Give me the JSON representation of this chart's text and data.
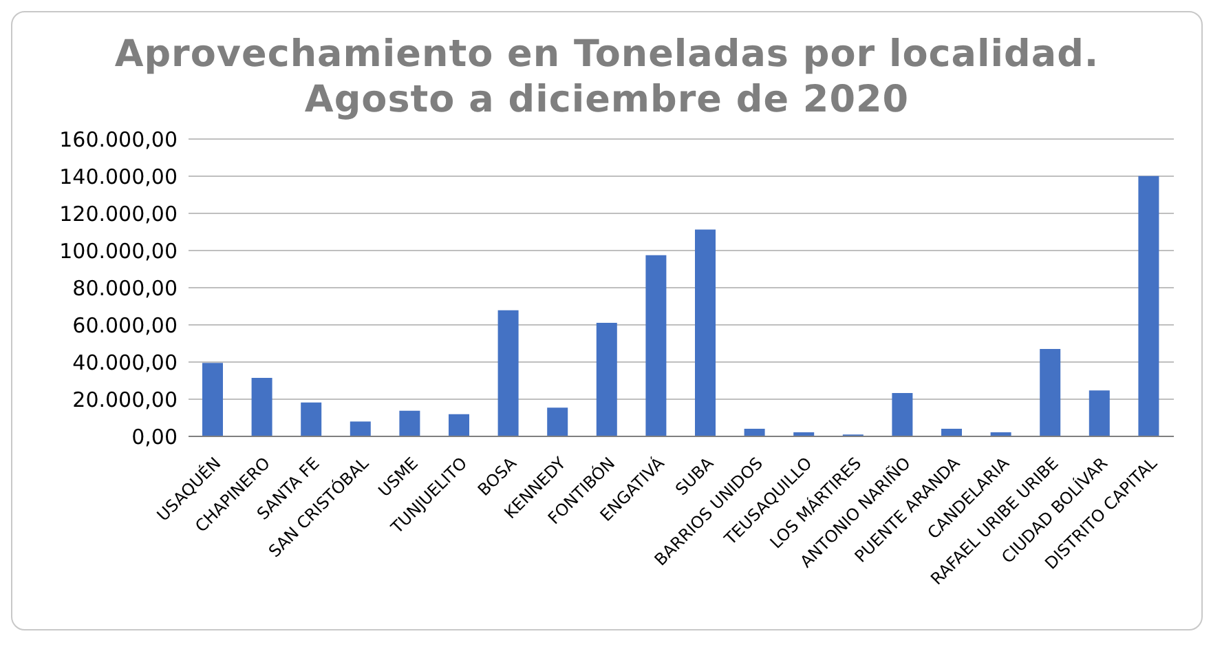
{
  "chart_data": {
    "type": "bar",
    "title": "Aprovechamiento en Toneladas por localidad.\nAgosto a diciembre de 2020",
    "categories": [
      "USAQUÉN",
      "CHAPINERO",
      "SANTA FE",
      "SAN CRISTÓBAL",
      "USME",
      "TUNJUELITO",
      "BOSA",
      "KENNEDY",
      "FONTIBÓN",
      "ENGATIVÁ",
      "SUBA",
      "BARRIOS UNIDOS",
      "TEUSAQUILLO",
      "LOS MÁRTIRES",
      "ANTONIO NARIÑO",
      "PUENTE ARANDA",
      "CANDELARIA",
      "RAFAEL URIBE URIBE",
      "CIUDAD BOLÍVAR",
      "DISTRITO CAPITAL"
    ],
    "values": [
      39500,
      31500,
      18200,
      8000,
      13800,
      11900,
      67900,
      15500,
      61100,
      97500,
      111300,
      4100,
      2200,
      1000,
      23300,
      4100,
      2200,
      47000,
      24700,
      140100
    ],
    "color": "#4472c4",
    "ylim": [
      0,
      160000
    ],
    "yticks": [
      {
        "value": 0,
        "label": "0,00"
      },
      {
        "value": 20000,
        "label": "20.000,00"
      },
      {
        "value": 40000,
        "label": "40.000,00"
      },
      {
        "value": 60000,
        "label": "60.000,00"
      },
      {
        "value": 80000,
        "label": "80.000,00"
      },
      {
        "value": 100000,
        "label": "100.000,00"
      },
      {
        "value": 120000,
        "label": "120.000,00"
      },
      {
        "value": 140000,
        "label": "140.000,00"
      },
      {
        "value": 160000,
        "label": "160.000,00"
      }
    ],
    "grid": "y"
  }
}
